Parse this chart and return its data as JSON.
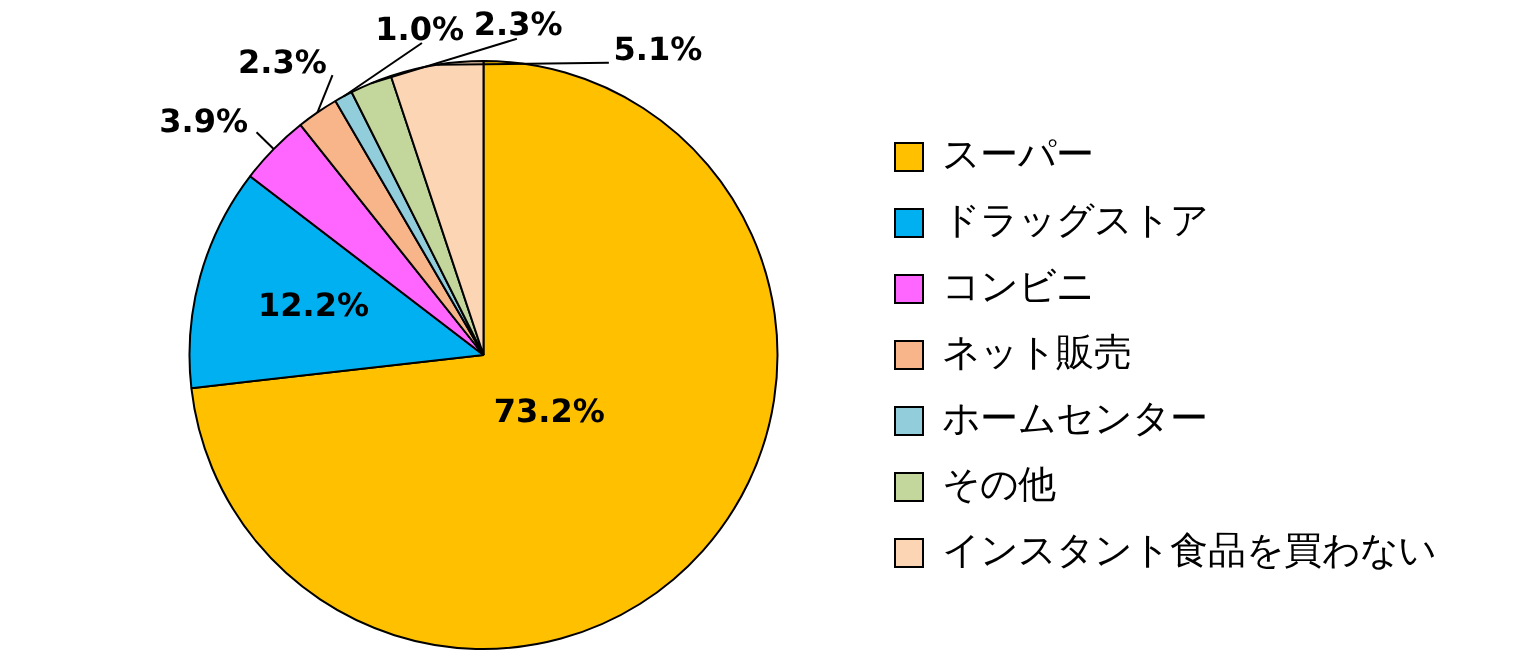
{
  "chart_data": {
    "type": "pie",
    "categories": [
      "スーパー",
      "ドラッグストア",
      "コンビニ",
      "ネット販売",
      "ホームセンター",
      "その他",
      "インスタント食品を買わない"
    ],
    "values": [
      73.2,
      12.2,
      3.9,
      2.3,
      1.0,
      2.3,
      5.1
    ],
    "colors": [
      "#ffc000",
      "#00b0f0",
      "#ff66ff",
      "#f8b58a",
      "#92cddc",
      "#c3d69b",
      "#fcd5b5"
    ],
    "value_labels": [
      "73.2%",
      "12.2%",
      "3.9%",
      "2.3%",
      "1.0%",
      "2.3%",
      "5.1%"
    ],
    "legend": "right"
  }
}
